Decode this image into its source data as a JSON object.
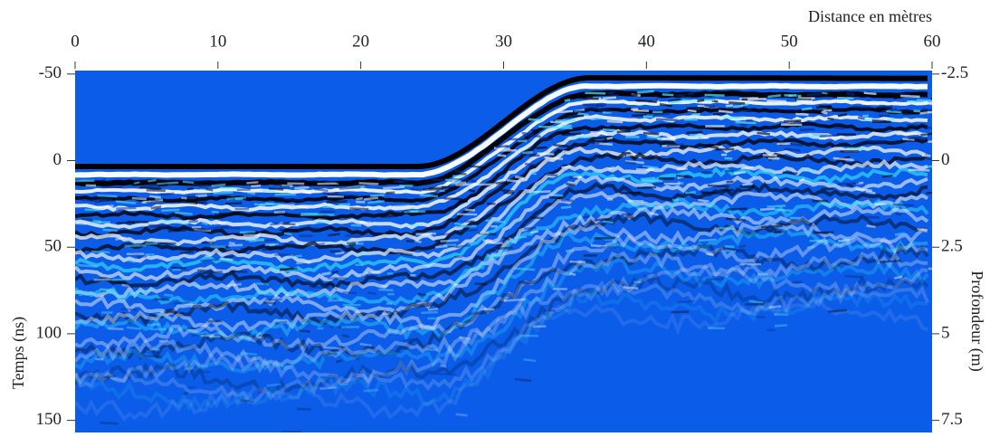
{
  "chart_data": {
    "type": "radargram",
    "x_label": "Distance en mètres",
    "y_label": "Temps (ns)",
    "y2_label": "Profondeur (m)",
    "xlim": [
      0,
      60
    ],
    "xticks": [
      0,
      10,
      20,
      30,
      40,
      50,
      60
    ],
    "ylim": [
      -52,
      157
    ],
    "yticks": [
      -50,
      0,
      50,
      100,
      150
    ],
    "y2lim": [
      -2.6,
      7.85
    ],
    "y2ticks": [
      -2.5,
      0,
      2.5,
      5,
      7.5
    ],
    "color": "#0b5ce8"
  }
}
